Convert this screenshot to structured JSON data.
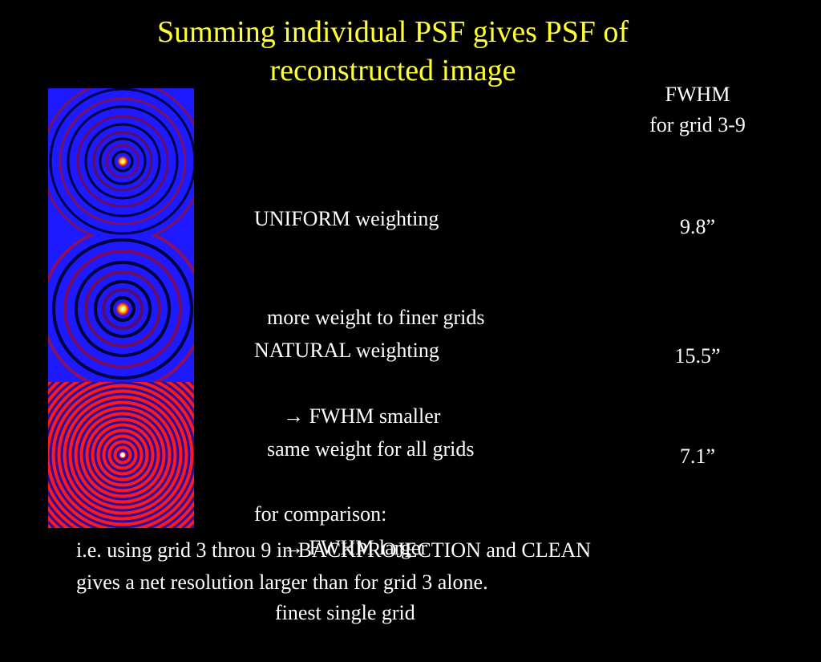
{
  "slide": {
    "title_line1": "Summing individual PSF gives PSF of",
    "title_line2": "reconstructed image",
    "fwhm_header": {
      "line1": "FWHM",
      "line2": "for grid 3-9"
    },
    "uniform": {
      "heading": "UNIFORM weighting",
      "detail": "more weight to finer grids",
      "result": "FWHM smaller",
      "fwhm_value": "9.8”"
    },
    "natural": {
      "heading": "NATURAL weighting",
      "detail": "same weight for all grids",
      "result": "FWHM larger",
      "fwhm_value": "15.5”"
    },
    "comparison": {
      "heading": "for comparison:",
      "detail": "finest single grid",
      "fwhm_value": "7.1”"
    },
    "footer_line1": "i.e. using grid 3 throu 9 in BACKPROJECTION and CLEAN",
    "footer_line2": "gives a net resolution larger than for grid 3 alone.",
    "arrow_glyph": "→"
  },
  "colors": {
    "title": "#ffff33",
    "text": "#ffffff",
    "background": "#000000",
    "psf_blue": "#1a1aff",
    "psf_red": "#ff1a1a"
  }
}
